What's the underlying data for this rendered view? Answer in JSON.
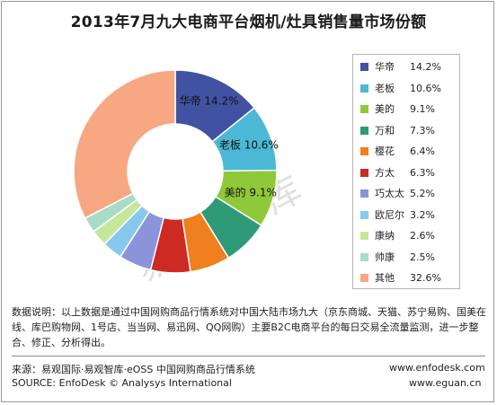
{
  "title": "2013年7月九大电商平台烟机/灶具销售量市场份额",
  "watermark": "易观智库",
  "chart_data": {
    "type": "donut",
    "title": "2013年7月九大电商平台烟机/灶具销售量市场份额",
    "unit": "%",
    "legend_position": "right",
    "slices": [
      {
        "name": "华帝",
        "value": 14.2,
        "label": "14.2%",
        "color": "#4152a3",
        "labeled": true
      },
      {
        "name": "老板",
        "value": 10.6,
        "label": "10.6%",
        "color": "#4bb9d5",
        "labeled": true
      },
      {
        "name": "美的",
        "value": 9.1,
        "label": "9.1%",
        "color": "#8fc93a",
        "labeled": true
      },
      {
        "name": "万和",
        "value": 7.3,
        "label": "7.3%",
        "color": "#2f9a78",
        "labeled": false
      },
      {
        "name": "樱花",
        "value": 6.4,
        "label": "6.4%",
        "color": "#f07f1d",
        "labeled": false
      },
      {
        "name": "方太",
        "value": 6.3,
        "label": "6.3%",
        "color": "#cc2a22",
        "labeled": false
      },
      {
        "name": "巧太太",
        "value": 5.2,
        "label": "5.2%",
        "color": "#8b93d9",
        "labeled": false
      },
      {
        "name": "欧尼尔",
        "value": 3.2,
        "label": "3.2%",
        "color": "#86c9ee",
        "labeled": false
      },
      {
        "name": "康纳",
        "value": 2.6,
        "label": "2.6%",
        "color": "#c6e79a",
        "labeled": false
      },
      {
        "name": "帅康",
        "value": 2.5,
        "label": "2.5%",
        "color": "#a8dcc9",
        "labeled": false
      },
      {
        "name": "其他",
        "value": 32.6,
        "label": "32.6%",
        "color": "#f7a882",
        "labeled": false
      }
    ]
  },
  "note": "数据说明：以上数据是通过中国网购商品行情系统对中国大陆市场九大（京东商城、天猫、苏宁易购、国美在线、库巴购物网、1号店、当当网、易迅网、QQ网购）主要B2C电商平台的每日交易全流量监测，进一步整合、修正、分析得出。",
  "source_cn": "来源：易观国际·易观智库·eOSS 中国网购商品行情系统",
  "source_en": "SOURCE: EnfoDesk © Analysys International",
  "url1": "www.enfodesk.com",
  "url2": "www.eguan.cn"
}
